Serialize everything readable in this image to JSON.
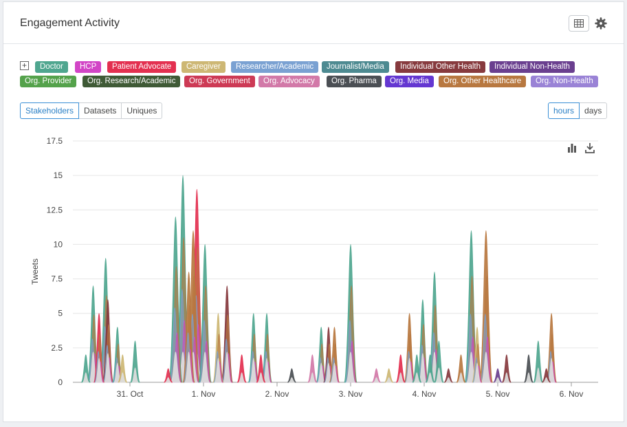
{
  "header": {
    "title": "Engagement Activity"
  },
  "legend": {
    "toggle": "+",
    "items": [
      {
        "label": "Doctor",
        "color": "#4fa68f"
      },
      {
        "label": "HCP",
        "color": "#d245c6"
      },
      {
        "label": "Patient Advocate",
        "color": "#e33050"
      },
      {
        "label": "Caregiver",
        "color": "#cdb774"
      },
      {
        "label": "Researcher/Academic",
        "color": "#7aa1d2"
      },
      {
        "label": "Journalist/Media",
        "color": "#4d8a91"
      },
      {
        "label": "Individual Other Health",
        "color": "#873a3e"
      },
      {
        "label": "Individual Non-Health",
        "color": "#6a3f8f"
      },
      {
        "label": "Org. Provider",
        "color": "#54a24b"
      },
      {
        "label": "Org. Research/Academic",
        "color": "#3f5a36"
      },
      {
        "label": "Org. Government",
        "color": "#cd3a55"
      },
      {
        "label": "Org. Advocacy",
        "color": "#d279a8"
      },
      {
        "label": "Org. Pharma",
        "color": "#4b4f54"
      },
      {
        "label": "Org. Media",
        "color": "#6437d1"
      },
      {
        "label": "Org. Other Healthcare",
        "color": "#b87840"
      },
      {
        "label": "Org. Non-Health",
        "color": "#9a83d6"
      }
    ]
  },
  "view_tabs": [
    "Stakeholders",
    "Datasets",
    "Uniques"
  ],
  "view_active": "Stakeholders",
  "interval_tabs": [
    "hours",
    "days"
  ],
  "interval_active": "hours",
  "icons": {
    "table": "table-icon",
    "gear": "gear-icon",
    "bars": "bar-chart-icon",
    "download": "download-icon"
  },
  "chart_data": {
    "type": "area",
    "stacked": true,
    "ylabel": "Tweets",
    "ylim": [
      0,
      17.5
    ],
    "yticks": [
      "0",
      "2.5",
      "5",
      "7.5",
      "10",
      "12.5",
      "15",
      "17.5"
    ],
    "xticks": [
      "31. Oct",
      "1. Nov",
      "2. Nov",
      "3. Nov",
      "4. Nov",
      "5. Nov",
      "6. Nov"
    ],
    "x_unit": "day (Oct 31 = 0), hourly buckets",
    "x_start": -0.8,
    "x_end": 6.35,
    "peaks": [
      {
        "t": -0.6,
        "v": 2.0,
        "s": "Doctor"
      },
      {
        "t": -0.5,
        "v": 7.0,
        "s": "Doctor"
      },
      {
        "t": -0.42,
        "v": 5.0,
        "s": "Patient Advocate"
      },
      {
        "t": -0.33,
        "v": 9.0,
        "s": "Doctor"
      },
      {
        "t": -0.3,
        "v": 6.0,
        "s": "Individual Other Health"
      },
      {
        "t": -0.17,
        "v": 4.0,
        "s": "Doctor"
      },
      {
        "t": -0.1,
        "v": 2.0,
        "s": "Caregiver"
      },
      {
        "t": 0.07,
        "v": 3.0,
        "s": "Doctor"
      },
      {
        "t": 0.52,
        "v": 1.0,
        "s": "Patient Advocate"
      },
      {
        "t": 0.62,
        "v": 12.0,
        "s": "Doctor"
      },
      {
        "t": 0.72,
        "v": 15.0,
        "s": "Doctor"
      },
      {
        "t": 0.8,
        "v": 8.0,
        "s": "Org. Other Healthcare"
      },
      {
        "t": 0.86,
        "v": 11.0,
        "s": "Org. Other Healthcare"
      },
      {
        "t": 0.91,
        "v": 14.0,
        "s": "Patient Advocate"
      },
      {
        "t": 1.02,
        "v": 10.0,
        "s": "Doctor"
      },
      {
        "t": 1.2,
        "v": 5.0,
        "s": "Caregiver"
      },
      {
        "t": 1.32,
        "v": 7.0,
        "s": "Individual Other Health"
      },
      {
        "t": 1.52,
        "v": 2.0,
        "s": "Patient Advocate"
      },
      {
        "t": 1.68,
        "v": 5.0,
        "s": "Doctor"
      },
      {
        "t": 1.78,
        "v": 2.0,
        "s": "Patient Advocate"
      },
      {
        "t": 1.86,
        "v": 5.0,
        "s": "Doctor"
      },
      {
        "t": 2.2,
        "v": 1.0,
        "s": "Org. Pharma"
      },
      {
        "t": 2.48,
        "v": 2.0,
        "s": "Org. Advocacy"
      },
      {
        "t": 2.6,
        "v": 4.0,
        "s": "Doctor"
      },
      {
        "t": 2.7,
        "v": 4.0,
        "s": "Individual Other Health"
      },
      {
        "t": 2.78,
        "v": 4.0,
        "s": "Org. Other Healthcare"
      },
      {
        "t": 3.0,
        "v": 10.0,
        "s": "Doctor"
      },
      {
        "t": 3.35,
        "v": 1.0,
        "s": "Org. Advocacy"
      },
      {
        "t": 3.52,
        "v": 1.0,
        "s": "Caregiver"
      },
      {
        "t": 3.68,
        "v": 2.0,
        "s": "Patient Advocate"
      },
      {
        "t": 3.8,
        "v": 5.0,
        "s": "Org. Other Healthcare"
      },
      {
        "t": 3.9,
        "v": 2.0,
        "s": "Doctor"
      },
      {
        "t": 3.98,
        "v": 6.0,
        "s": "Doctor"
      },
      {
        "t": 4.08,
        "v": 2.0,
        "s": "Doctor"
      },
      {
        "t": 4.14,
        "v": 8.0,
        "s": "Doctor"
      },
      {
        "t": 4.2,
        "v": 3.0,
        "s": "Doctor"
      },
      {
        "t": 4.33,
        "v": 1.0,
        "s": "Individual Other Health"
      },
      {
        "t": 4.5,
        "v": 2.0,
        "s": "Org. Other Healthcare"
      },
      {
        "t": 4.64,
        "v": 11.0,
        "s": "Doctor"
      },
      {
        "t": 4.72,
        "v": 4.0,
        "s": "Caregiver"
      },
      {
        "t": 4.84,
        "v": 11.0,
        "s": "Org. Other Healthcare"
      },
      {
        "t": 5.0,
        "v": 1.0,
        "s": "Individual Non-Health"
      },
      {
        "t": 5.12,
        "v": 2.0,
        "s": "Individual Other Health"
      },
      {
        "t": 5.42,
        "v": 2.0,
        "s": "Org. Pharma"
      },
      {
        "t": 5.55,
        "v": 3.0,
        "s": "Doctor"
      },
      {
        "t": 5.66,
        "v": 1.0,
        "s": "Individual Other Health"
      },
      {
        "t": 5.73,
        "v": 5.0,
        "s": "Org. Other Healthcare"
      }
    ]
  }
}
